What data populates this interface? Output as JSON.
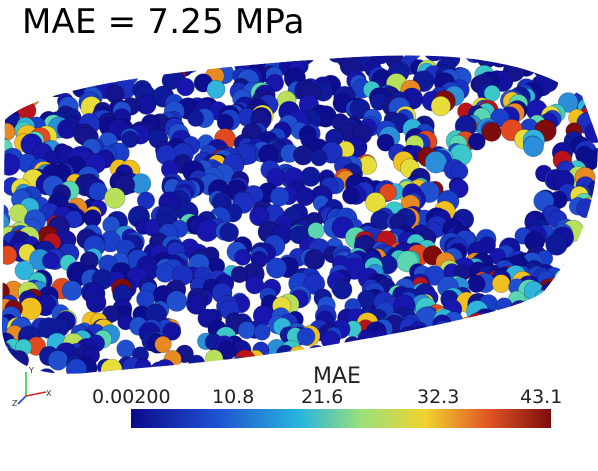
{
  "title": "MAE = 7.25 MPa",
  "colorbar": {
    "label": "MAE",
    "ticks": [
      "0.00200",
      "10.8",
      "21.6",
      "32.3",
      "43.1"
    ],
    "min": 0.002,
    "max": 43.1,
    "colormap": [
      "#1a1aa8",
      "#2c6ad6",
      "#36c6d2",
      "#b9e65a",
      "#f0d430",
      "#e05020",
      "#8f0f0f"
    ]
  },
  "axes_labels": {
    "y": "Y",
    "x": "X",
    "z": "Z"
  }
}
